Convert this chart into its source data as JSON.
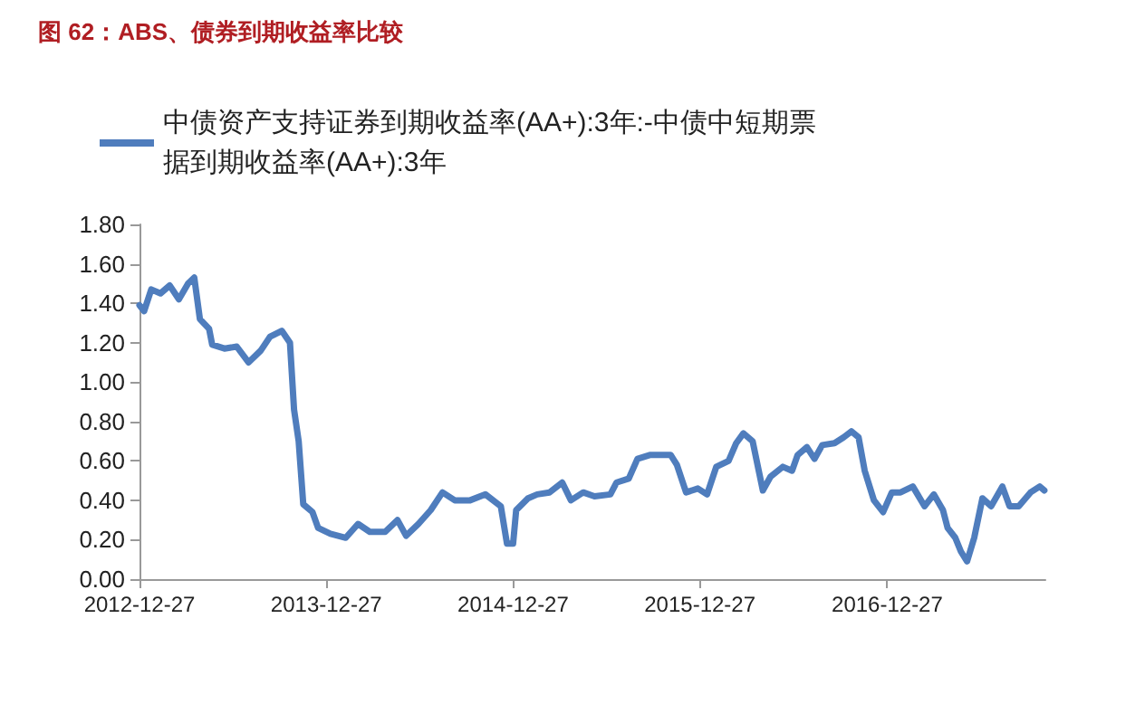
{
  "chart_data": {
    "type": "line",
    "title": "图 62：ABS、债券到期收益率比较",
    "x": [
      "2012-12-27",
      "2013-01-05",
      "2013-01-19",
      "2013-02-06",
      "2013-02-24",
      "2013-03-14",
      "2013-04-01",
      "2013-04-13",
      "2013-04-24",
      "2013-05-12",
      "2013-05-18",
      "2013-06-11",
      "2013-07-05",
      "2013-07-28",
      "2013-08-21",
      "2013-09-08",
      "2013-10-01",
      "2013-10-17",
      "2013-10-25",
      "2013-11-03",
      "2013-11-12",
      "2013-11-30",
      "2013-12-11",
      "2014-01-04",
      "2014-02-03",
      "2014-02-27",
      "2014-03-22",
      "2014-04-21",
      "2014-05-15",
      "2014-06-01",
      "2014-06-25",
      "2014-07-19",
      "2014-08-11",
      "2014-09-04",
      "2014-10-04",
      "2014-11-03",
      "2014-12-03",
      "2014-12-15",
      "2014-12-27",
      "2015-01-02",
      "2015-01-25",
      "2015-02-12",
      "2015-03-08",
      "2015-04-02",
      "2015-04-19",
      "2015-05-13",
      "2015-06-04",
      "2015-07-05",
      "2015-07-17",
      "2015-08-10",
      "2015-08-27",
      "2015-09-20",
      "2015-10-31",
      "2015-11-12",
      "2015-11-30",
      "2015-12-23",
      "2016-01-10",
      "2016-01-28",
      "2016-02-21",
      "2016-03-07",
      "2016-03-21",
      "2016-04-08",
      "2016-04-20",
      "2016-04-28",
      "2016-05-13",
      "2016-06-06",
      "2016-06-24",
      "2016-07-05",
      "2016-07-23",
      "2016-08-07",
      "2016-08-22",
      "2016-09-15",
      "2016-10-03",
      "2016-10-18",
      "2016-11-01",
      "2016-11-13",
      "2016-12-01",
      "2016-12-19",
      "2017-01-05",
      "2017-01-22",
      "2017-02-15",
      "2017-03-10",
      "2017-03-28",
      "2017-04-15",
      "2017-04-24",
      "2017-05-09",
      "2017-05-20",
      "2017-06-01",
      "2017-06-15",
      "2017-07-01",
      "2017-07-18",
      "2017-08-09",
      "2017-08-23",
      "2017-09-10",
      "2017-10-03",
      "2017-10-21",
      "2017-10-30"
    ],
    "series": [
      {
        "name": "中债资产支持证券到期收益率(AA+):3年:-中债中短期票据到期收益率(AA+):3年",
        "color": "#4f7dbd",
        "values": [
          1.39,
          1.36,
          1.47,
          1.45,
          1.49,
          1.42,
          1.5,
          1.53,
          1.32,
          1.27,
          1.19,
          1.17,
          1.18,
          1.1,
          1.16,
          1.23,
          1.26,
          1.2,
          0.86,
          0.7,
          0.38,
          0.34,
          0.26,
          0.23,
          0.21,
          0.28,
          0.24,
          0.24,
          0.3,
          0.22,
          0.28,
          0.35,
          0.44,
          0.4,
          0.4,
          0.43,
          0.37,
          0.18,
          0.18,
          0.35,
          0.41,
          0.43,
          0.44,
          0.49,
          0.4,
          0.44,
          0.42,
          0.43,
          0.49,
          0.51,
          0.61,
          0.63,
          0.63,
          0.58,
          0.44,
          0.46,
          0.43,
          0.57,
          0.6,
          0.69,
          0.74,
          0.7,
          0.55,
          0.45,
          0.52,
          0.57,
          0.55,
          0.63,
          0.67,
          0.61,
          0.68,
          0.69,
          0.72,
          0.75,
          0.72,
          0.55,
          0.4,
          0.34,
          0.44,
          0.44,
          0.47,
          0.37,
          0.43,
          0.35,
          0.26,
          0.21,
          0.14,
          0.09,
          0.21,
          0.41,
          0.37,
          0.47,
          0.37,
          0.37,
          0.44,
          0.47,
          0.45
        ]
      }
    ],
    "xlim": [
      "2012-12-27",
      "2017-11-01"
    ],
    "xticks": [
      "2012-12-27",
      "2013-12-27",
      "2014-12-27",
      "2015-12-27",
      "2016-12-27"
    ],
    "ylim": [
      0,
      1.8
    ],
    "yticks": [
      {
        "value": 0,
        "label": "0.00"
      },
      {
        "value": 0.2,
        "label": "0.20"
      },
      {
        "value": 0.4,
        "label": "0.40"
      },
      {
        "value": 0.6,
        "label": "0.60"
      },
      {
        "value": 0.8,
        "label": "0.80"
      },
      {
        "value": 1,
        "label": "1.00"
      },
      {
        "value": 1.2,
        "label": "1.20"
      },
      {
        "value": 1.4,
        "label": "1.40"
      },
      {
        "value": 1.6,
        "label": "1.60"
      },
      {
        "value": 1.8,
        "label": "1.80"
      }
    ],
    "legend": "top",
    "grid": false,
    "marker": "none",
    "line_style": "solid"
  }
}
